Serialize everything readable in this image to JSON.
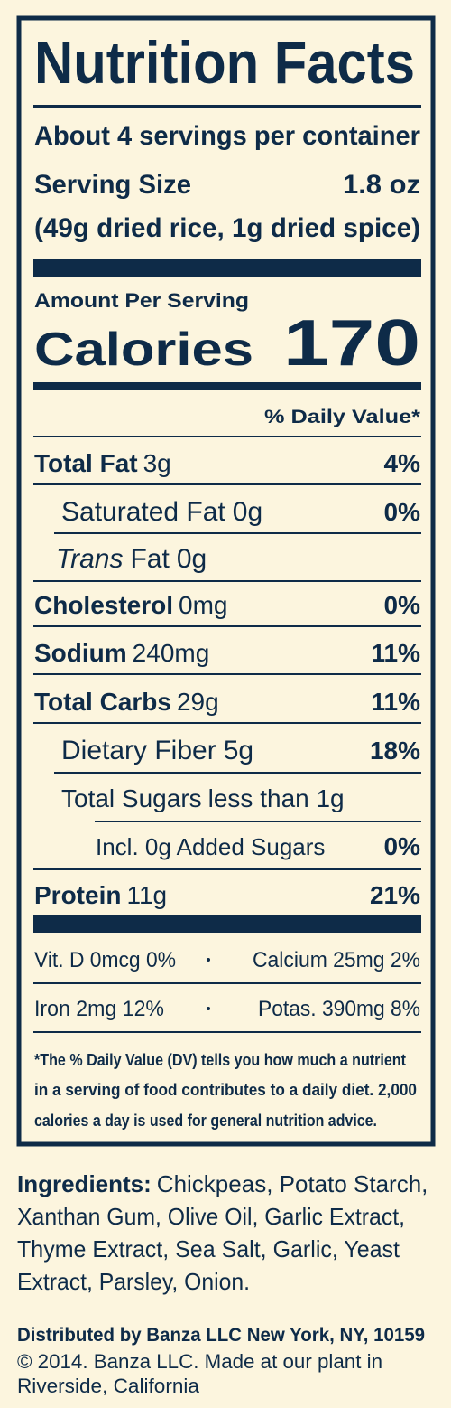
{
  "header": {
    "title": "Nutrition Facts",
    "servings": "About 4 servings per container",
    "serving_size": {
      "label": "Serving Size",
      "value": "1.8 oz",
      "detail": "(49g dried rice, 1g dried spice)"
    }
  },
  "calories": {
    "amount_per_serving": "Amount Per Serving",
    "label": "Calories",
    "value": "170"
  },
  "daily_value_header": "% Daily Value*",
  "nutrients": [
    {
      "name": "Total Fat",
      "amount": "3g",
      "dv": "4%"
    },
    {
      "name": "Saturated Fat",
      "amount": "0g",
      "dv": "0%"
    },
    {
      "name_italic": "Trans",
      "name": "Fat",
      "amount": "0g"
    },
    {
      "name": "Cholesterol",
      "amount": "0mg",
      "dv": "0%"
    },
    {
      "name": "Sodium",
      "amount": "240mg",
      "dv": "11%"
    },
    {
      "name": "Total Carbs",
      "amount": "29g",
      "dv": "11%"
    },
    {
      "name": "Dietary Fiber",
      "amount": "5g",
      "dv": "18%"
    },
    {
      "name": "Total Sugars",
      "amount": "less than 1g"
    },
    {
      "name": "Incl. 0g Added Sugars",
      "dv": "0%"
    },
    {
      "name": "Protein",
      "amount": "11g",
      "dv": "21%"
    }
  ],
  "vitamins": [
    [
      "Vit. D 0mcg 0%",
      "Calcium 25mg 2%"
    ],
    [
      "Iron 2mg 12%",
      "Potas. 390mg 8%"
    ]
  ],
  "footnote": [
    "*The % Daily Value (DV) tells you how much a nutrient",
    "in a serving of food contributes to a daily diet. 2,000",
    "calories a day is used for general nutrition advice."
  ],
  "ingredients": {
    "label": "Ingredients:",
    "lines": [
      "Chickpeas, Potato Starch,",
      "Xanthan Gum, Olive Oil, Garlic Extract,",
      "Thyme Extract, Sea Salt, Garlic, Yeast",
      "Extract, Parsley, Onion."
    ]
  },
  "distributor": "Distributed by Banza LLC New York, NY, 10159",
  "copyright": [
    "© 2014. Banza LLC. Made at our plant in",
    "Riverside, California"
  ]
}
